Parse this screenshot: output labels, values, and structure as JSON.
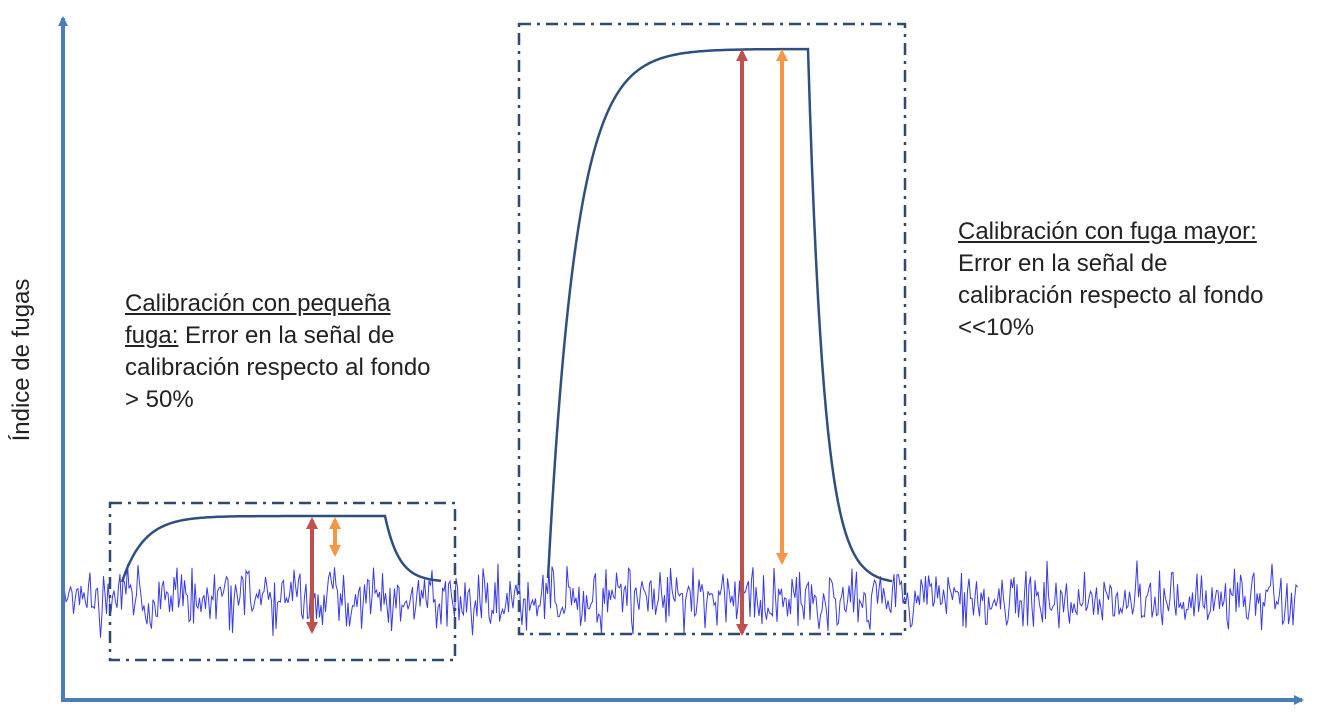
{
  "axis": {
    "y_label": "Índice de fugas"
  },
  "annotations": [
    {
      "heading": "Calibración con pequeña fuga:",
      "text": " Error en la señal de calibración respecto al fondo > 50%"
    },
    {
      "heading": "Calibración con fuga mayor: ",
      "text": "Error en la señal de calibración respecto al fondo <<10%"
    }
  ]
}
